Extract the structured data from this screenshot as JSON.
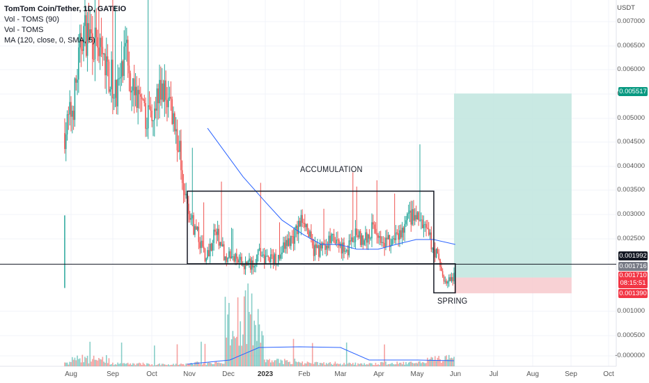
{
  "legend": {
    "title": "TomTom Coin/Tether, 1D, GATEIO",
    "line2": "Vol - TOMS (90)",
    "line3": "Vol - TOMS",
    "line4": "MA (120, close, 0, SMA, 5)"
  },
  "price_axis": {
    "unit": "USDT",
    "ticks": [
      "0.007000",
      "0.006500",
      "0.006000",
      "0.005500",
      "0.005000",
      "0.004500",
      "0.004000",
      "0.003500",
      "0.003000",
      "0.002500",
      "0.001000",
      "0.000500",
      "-0.000000"
    ]
  },
  "time_axis": {
    "labels": [
      {
        "text": "Aug",
        "bold": false
      },
      {
        "text": "Sep",
        "bold": false
      },
      {
        "text": "Oct",
        "bold": false
      },
      {
        "text": "Nov",
        "bold": false
      },
      {
        "text": "Dec",
        "bold": false
      },
      {
        "text": "2023",
        "bold": true
      },
      {
        "text": "Feb",
        "bold": false
      },
      {
        "text": "Mar",
        "bold": false
      },
      {
        "text": "Apr",
        "bold": false
      },
      {
        "text": "May",
        "bold": false
      },
      {
        "text": "Jun",
        "bold": false
      },
      {
        "text": "Jul",
        "bold": false
      },
      {
        "text": "Aug",
        "bold": false
      },
      {
        "text": "Sep",
        "bold": false
      },
      {
        "text": "Oct",
        "bold": false
      }
    ]
  },
  "price_tags": {
    "target": {
      "text": "0.005517",
      "color": "#089981"
    },
    "line": {
      "text": "0.001992",
      "color": "#131722"
    },
    "last_close": {
      "text": "0.001716",
      "color": "#787b86"
    },
    "current": {
      "text": "0.001710",
      "countdown": "08:15:51",
      "color": "#f23645"
    },
    "stop": {
      "text": "0.001390",
      "color": "#f23645"
    }
  },
  "annotations": {
    "accumulation": "ACCUMULATION",
    "spring": "SPRING"
  },
  "colors": {
    "up": "#26a69a",
    "down": "#ef5350",
    "ma": "#2962ff",
    "profit_zone": "#bfe5de",
    "loss_zone": "#f7c9cc"
  },
  "chart_data": {
    "type": "candlestick",
    "title": "TomTom Coin/Tether, 1D, GATEIO",
    "x_labels": [
      "Aug",
      "Sep",
      "Oct",
      "Nov",
      "Dec",
      "2023",
      "Feb",
      "Mar",
      "Apr",
      "May",
      "Jun",
      "Jul",
      "Aug",
      "Sep",
      "Oct"
    ],
    "ylim": [
      -0.0003,
      0.0076
    ],
    "y_unit": "USDT",
    "price_path": [
      [
        "2022-07-27",
        0.0047
      ],
      [
        "2022-08-03",
        0.0053
      ],
      [
        "2022-08-10",
        0.0068
      ],
      [
        "2022-08-17",
        0.0067
      ],
      [
        "2022-08-24",
        0.0063
      ],
      [
        "2022-08-31",
        0.0059
      ],
      [
        "2022-09-07",
        0.0056
      ],
      [
        "2022-09-14",
        0.0063
      ],
      [
        "2022-09-21",
        0.0055
      ],
      [
        "2022-09-28",
        0.005
      ],
      [
        "2022-10-05",
        0.0053
      ],
      [
        "2022-10-12",
        0.0056
      ],
      [
        "2022-10-19",
        0.0053
      ],
      [
        "2022-10-26",
        0.0043
      ],
      [
        "2022-11-02",
        0.003
      ],
      [
        "2022-11-09",
        0.0026
      ],
      [
        "2022-11-16",
        0.0021
      ],
      [
        "2022-11-23",
        0.0027
      ],
      [
        "2022-11-30",
        0.0022
      ],
      [
        "2022-12-07",
        0.0021
      ],
      [
        "2022-12-14",
        0.002
      ],
      [
        "2022-12-21",
        0.002
      ],
      [
        "2022-12-28",
        0.0022
      ],
      [
        "2023-01-04",
        0.0021
      ],
      [
        "2023-01-11",
        0.0021
      ],
      [
        "2023-01-18",
        0.0024
      ],
      [
        "2023-01-25",
        0.0026
      ],
      [
        "2023-02-01",
        0.003
      ],
      [
        "2023-02-08",
        0.0023
      ],
      [
        "2023-02-15",
        0.0023
      ],
      [
        "2023-02-22",
        0.0025
      ],
      [
        "2023-03-01",
        0.0024
      ],
      [
        "2023-03-08",
        0.0023
      ],
      [
        "2023-03-15",
        0.0026
      ],
      [
        "2023-03-22",
        0.0025
      ],
      [
        "2023-03-29",
        0.0028
      ],
      [
        "2023-04-05",
        0.0025
      ],
      [
        "2023-04-12",
        0.0024
      ],
      [
        "2023-04-19",
        0.0026
      ],
      [
        "2023-04-26",
        0.003
      ],
      [
        "2023-05-03",
        0.0029
      ],
      [
        "2023-05-10",
        0.0026
      ],
      [
        "2023-05-17",
        0.0022
      ],
      [
        "2023-05-24",
        0.0016
      ],
      [
        "2023-05-31",
        0.0017
      ]
    ],
    "ma_120": [
      [
        "2022-11-17",
        0.0048
      ],
      [
        "2022-12-01",
        0.0043
      ],
      [
        "2022-12-15",
        0.0038
      ],
      [
        "2023-01-01",
        0.0033
      ],
      [
        "2023-01-15",
        0.0029
      ],
      [
        "2023-02-01",
        0.0026
      ],
      [
        "2023-02-15",
        0.0024
      ],
      [
        "2023-03-01",
        0.0024
      ],
      [
        "2023-03-15",
        0.0023
      ],
      [
        "2023-04-01",
        0.0023
      ],
      [
        "2023-04-15",
        0.0024
      ],
      [
        "2023-05-01",
        0.0025
      ],
      [
        "2023-05-15",
        0.0025
      ],
      [
        "2023-06-01",
        0.0024
      ]
    ],
    "volume_relative": [
      [
        "2022-08",
        0.12
      ],
      [
        "2022-09",
        0.04
      ],
      [
        "2022-10",
        0.03
      ],
      [
        "2022-11",
        0.05
      ],
      [
        "2022-12",
        0.85
      ],
      [
        "2023-01",
        0.08
      ],
      [
        "2023-02",
        0.05
      ],
      [
        "2023-03",
        0.04
      ],
      [
        "2023-04",
        0.05
      ],
      [
        "2023-05",
        0.12
      ]
    ],
    "horizontal_line": 0.001992,
    "position": {
      "entry": 0.001716,
      "target": 0.005517,
      "stop": 0.00139,
      "start": "2023-05-31",
      "end": "2023-09-01"
    },
    "range_box": {
      "top": 0.0035,
      "bottom": 0.002,
      "start": "2022-11-01",
      "end": "2023-05-15"
    },
    "spring_box": {
      "top": 0.002,
      "bottom": 0.0014,
      "start": "2023-05-15",
      "end": "2023-06-01"
    }
  }
}
